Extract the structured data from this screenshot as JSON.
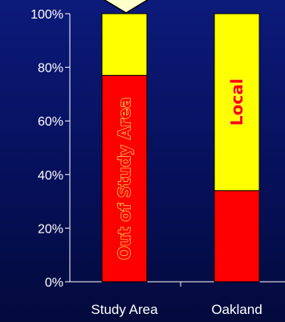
{
  "chart_data": {
    "type": "bar",
    "stacked": true,
    "categories": [
      "Study Area",
      "Oakland"
    ],
    "series": [
      {
        "name": "Out of Study Area",
        "values": [
          77,
          34
        ],
        "color": "#ff0000"
      },
      {
        "name": "Local",
        "values": [
          23,
          66
        ],
        "color": "#ffff00"
      }
    ],
    "segment_labels": [
      {
        "text": "Out of Study Area",
        "category": "Study Area",
        "series": "Out of Study Area"
      },
      {
        "text": "Local",
        "category": "Oakland",
        "series": "Local"
      }
    ],
    "yticks": [
      "0%",
      "20%",
      "40%",
      "60%",
      "80%",
      "100%"
    ],
    "ylim": [
      0,
      100
    ],
    "title": "",
    "xlabel": "",
    "ylabel": "",
    "grid": false,
    "legend": "none"
  },
  "colors": {
    "background": "#06105a",
    "axis": "#ffffff",
    "label_text": "#ff0000",
    "label_outline": "#ffff66",
    "callout_fill": "#ffffcc"
  }
}
